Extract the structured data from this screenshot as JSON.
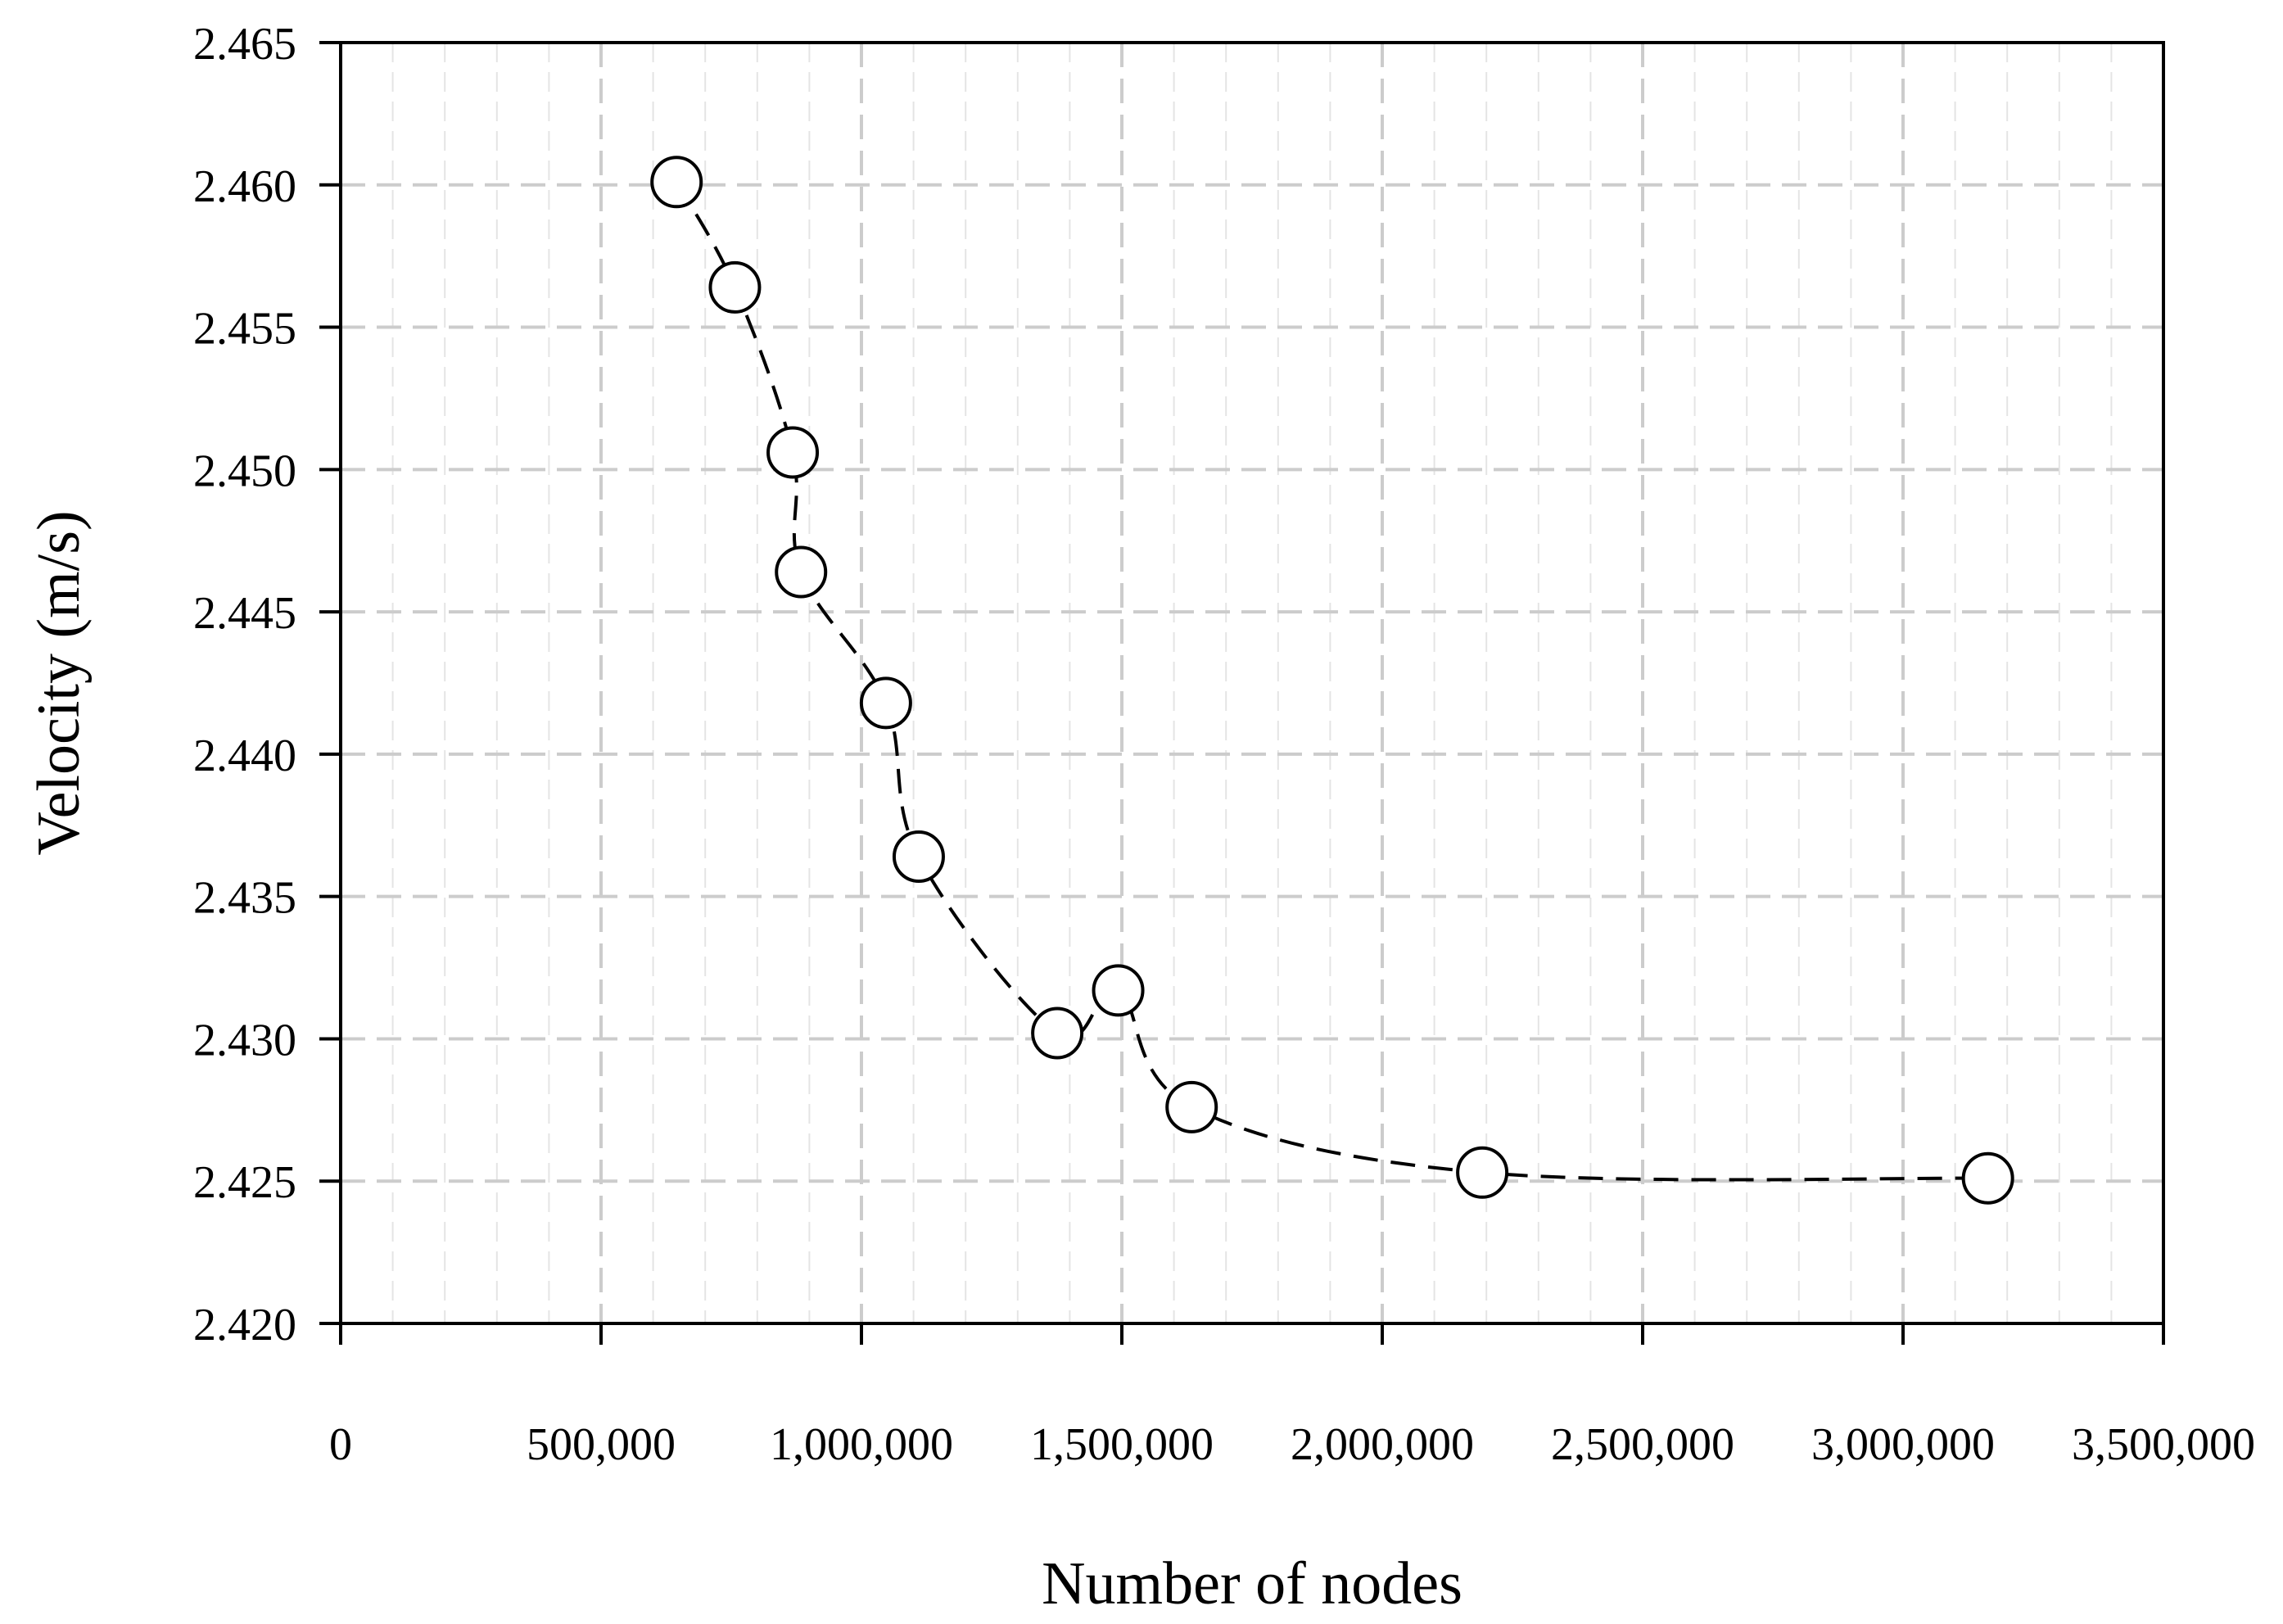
{
  "chart_data": {
    "type": "scatter",
    "title": "",
    "xlabel": "Number of nodes",
    "ylabel": "Velocity (m/s)",
    "xlim": [
      0,
      3500000
    ],
    "ylim": [
      2.42,
      2.465
    ],
    "x_ticks": [
      0,
      500000,
      1000000,
      1500000,
      2000000,
      2500000,
      3000000,
      3500000
    ],
    "x_tick_labels": [
      "0",
      "500,000",
      "1,000,000",
      "1,500,000",
      "2,000,000",
      "2,500,000",
      "3,000,000",
      "3,500,000"
    ],
    "y_ticks": [
      2.42,
      2.425,
      2.43,
      2.435,
      2.44,
      2.445,
      2.45,
      2.455,
      2.46,
      2.465
    ],
    "y_tick_labels": [
      "2.420",
      "2.425",
      "2.430",
      "2.435",
      "2.440",
      "2.445",
      "2.450",
      "2.455",
      "2.460",
      "2.465"
    ],
    "grid": true,
    "minor_grid": true,
    "legend": "none",
    "marker": "open-circle",
    "line_style": "dashed-smooth",
    "series": [
      {
        "color": "#000000",
        "x": [
          645000,
          757000,
          868000,
          884000,
          1047000,
          1110000,
          1376000,
          1493000,
          1634000,
          2192000,
          3163000
        ],
        "y": [
          2.4601,
          2.4564,
          2.4506,
          2.4464,
          2.4418,
          2.4364,
          2.4302,
          2.4317,
          2.4276,
          2.4253,
          2.4251
        ]
      }
    ]
  }
}
